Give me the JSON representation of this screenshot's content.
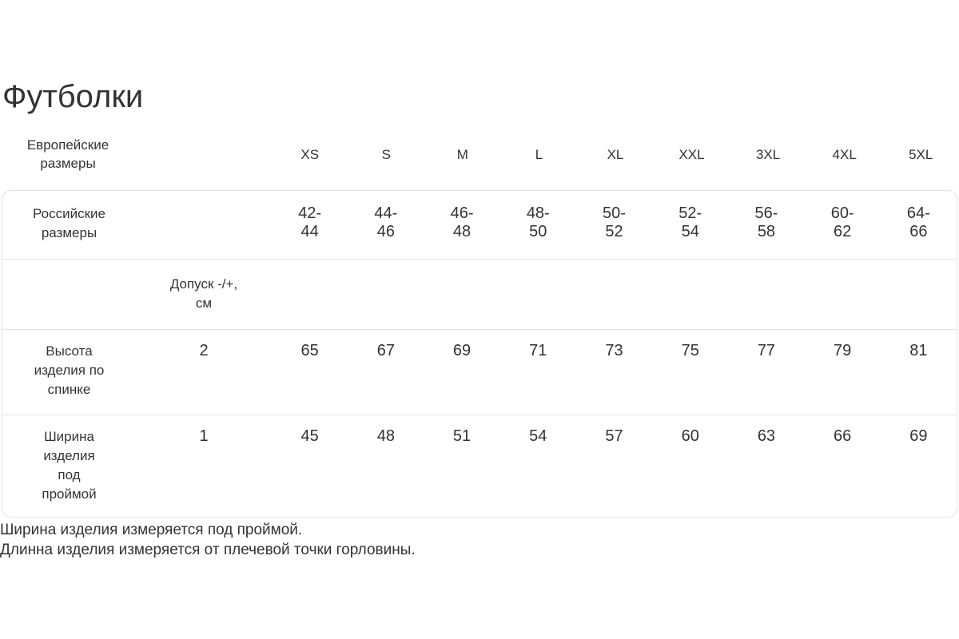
{
  "page": {
    "title": "Футболки",
    "footnotes": [
      "Ширина изделия измеряется под проймой.",
      "Длинна изделия измеряется от плечевой точки горловины."
    ]
  },
  "table": {
    "header": {
      "label": "Европейские\nразмеры",
      "sizes": [
        "XS",
        "S",
        "M",
        "L",
        "XL",
        "XXL",
        "3XL",
        "4XL",
        "5XL"
      ]
    },
    "rows": {
      "russian": {
        "label": "Российские\nразмеры",
        "values": [
          "42-\n44",
          "44-\n46",
          "46-\n48",
          "48-\n50",
          "50-\n52",
          "52-\n54",
          "56-\n58",
          "60-\n62",
          "64-\n66"
        ]
      },
      "tolerance": {
        "label": "Допуск -/+,\nсм"
      },
      "height": {
        "label": "Высота\nизделия по\nспинке",
        "tolerance": "2",
        "values": [
          "65",
          "67",
          "69",
          "71",
          "73",
          "75",
          "77",
          "79",
          "81"
        ]
      },
      "width": {
        "label": "Ширина\nизделия\nпод\nпроймой",
        "tolerance": "1",
        "values": [
          "45",
          "48",
          "51",
          "54",
          "57",
          "60",
          "63",
          "66",
          "69"
        ]
      }
    }
  },
  "colors": {
    "text": "#333333",
    "border": "#e3e3e3",
    "background": "#ffffff"
  }
}
